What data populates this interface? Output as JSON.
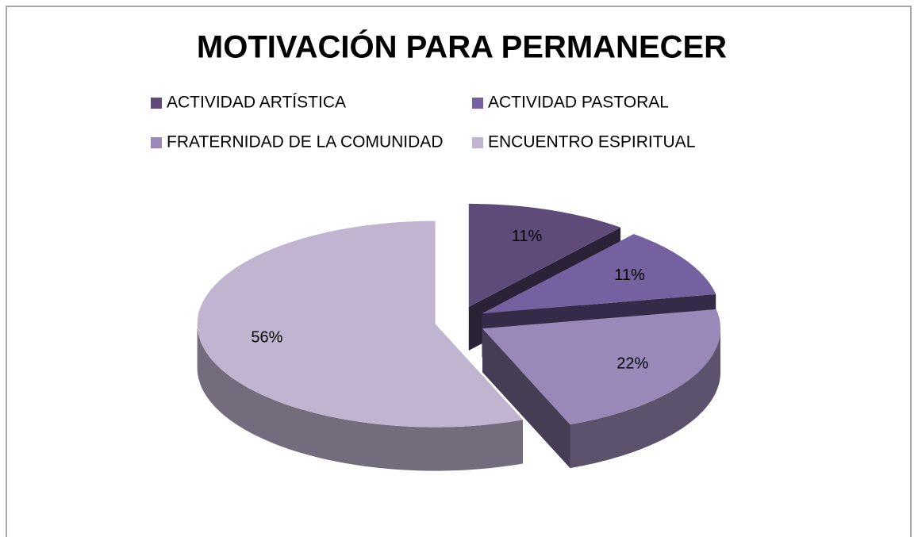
{
  "chart_data": {
    "type": "pie",
    "title": "MOTIVACIÓN PARA PERMANECER",
    "categories": [
      "ACTIVIDAD ARTÍSTICA",
      "ACTIVIDAD PASTORAL",
      "FRATERNIDAD DE LA COMUNIDAD",
      "ENCUENTRO ESPIRITUAL"
    ],
    "values": [
      11,
      11,
      22,
      56
    ],
    "value_labels": [
      "11%",
      "11%",
      "22%",
      "56%"
    ],
    "colors": [
      "#5f4b7a",
      "#7560a0",
      "#9a88b8",
      "#c0b4d0"
    ],
    "legend": "top"
  }
}
